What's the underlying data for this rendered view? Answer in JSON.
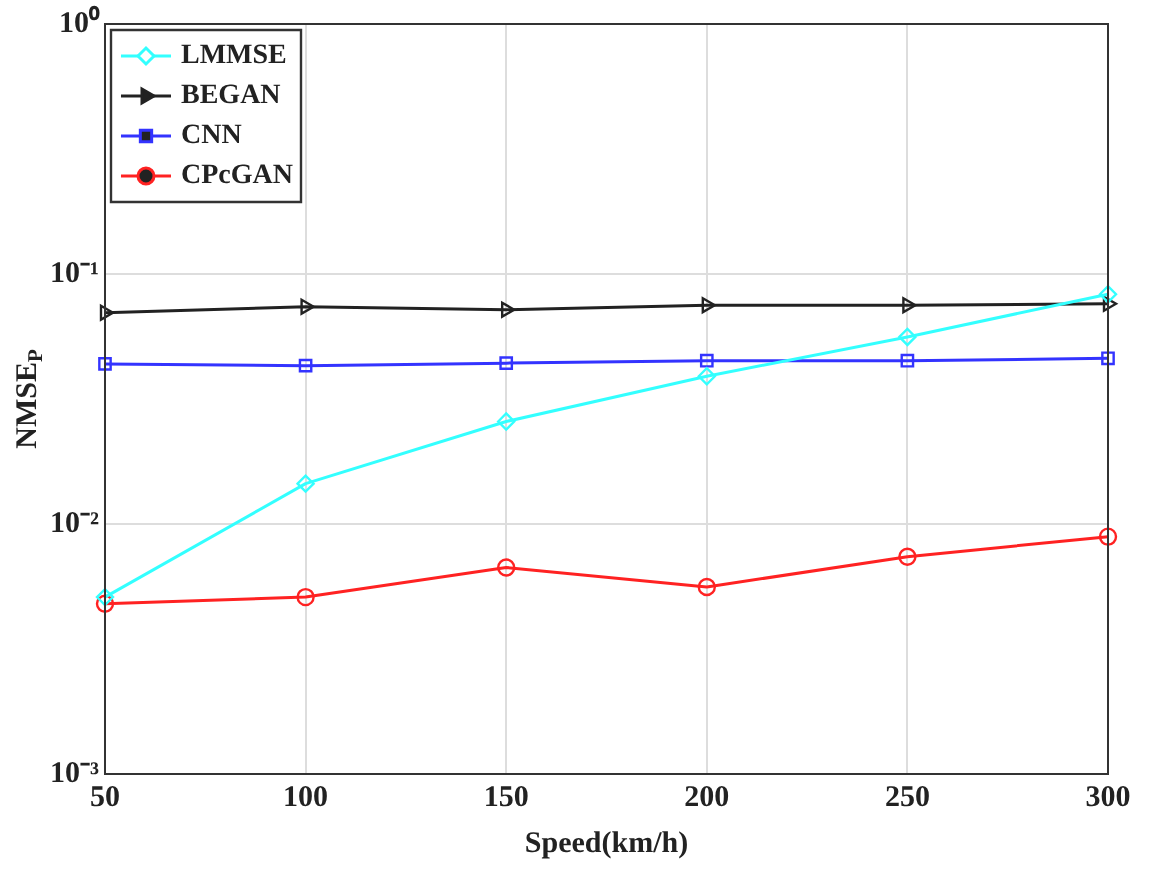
{
  "chart_data": {
    "type": "line",
    "xlabel": "Speed(km/h)",
    "ylabel": "NMSE$_{P}$",
    "x": [
      50,
      100,
      150,
      200,
      250,
      300
    ],
    "series": [
      {
        "name": "LMMSE",
        "color": "#33ffff",
        "marker": "diamond",
        "values": [
          0.0051,
          0.0145,
          0.0257,
          0.039,
          0.056,
          0.083
        ]
      },
      {
        "name": "BEGAN",
        "color": "#222222",
        "marker": "triangle",
        "values": [
          0.07,
          0.074,
          0.072,
          0.075,
          0.075,
          0.076
        ]
      },
      {
        "name": "CNN",
        "color": "#3333ff",
        "marker": "square",
        "values": [
          0.0437,
          0.043,
          0.044,
          0.045,
          0.045,
          0.046
        ]
      },
      {
        "name": "CPcGAN",
        "color": "#ff2222",
        "marker": "circle",
        "values": [
          0.0048,
          0.0051,
          0.0067,
          0.0056,
          0.0074,
          0.0089
        ]
      }
    ],
    "xlim": [
      50,
      300
    ],
    "xticks": [
      50,
      100,
      150,
      200,
      250,
      300
    ],
    "ylim": [
      0.001,
      1
    ],
    "yticks": [
      {
        "value": 0.001,
        "label": "10⁻³"
      },
      {
        "value": 0.01,
        "label": "10⁻²"
      },
      {
        "value": 0.1,
        "label": "10⁻¹"
      },
      {
        "value": 1,
        "label": "10⁰"
      }
    ],
    "log": "y",
    "grid": true,
    "legend": "top left",
    "line_style": "solid"
  }
}
